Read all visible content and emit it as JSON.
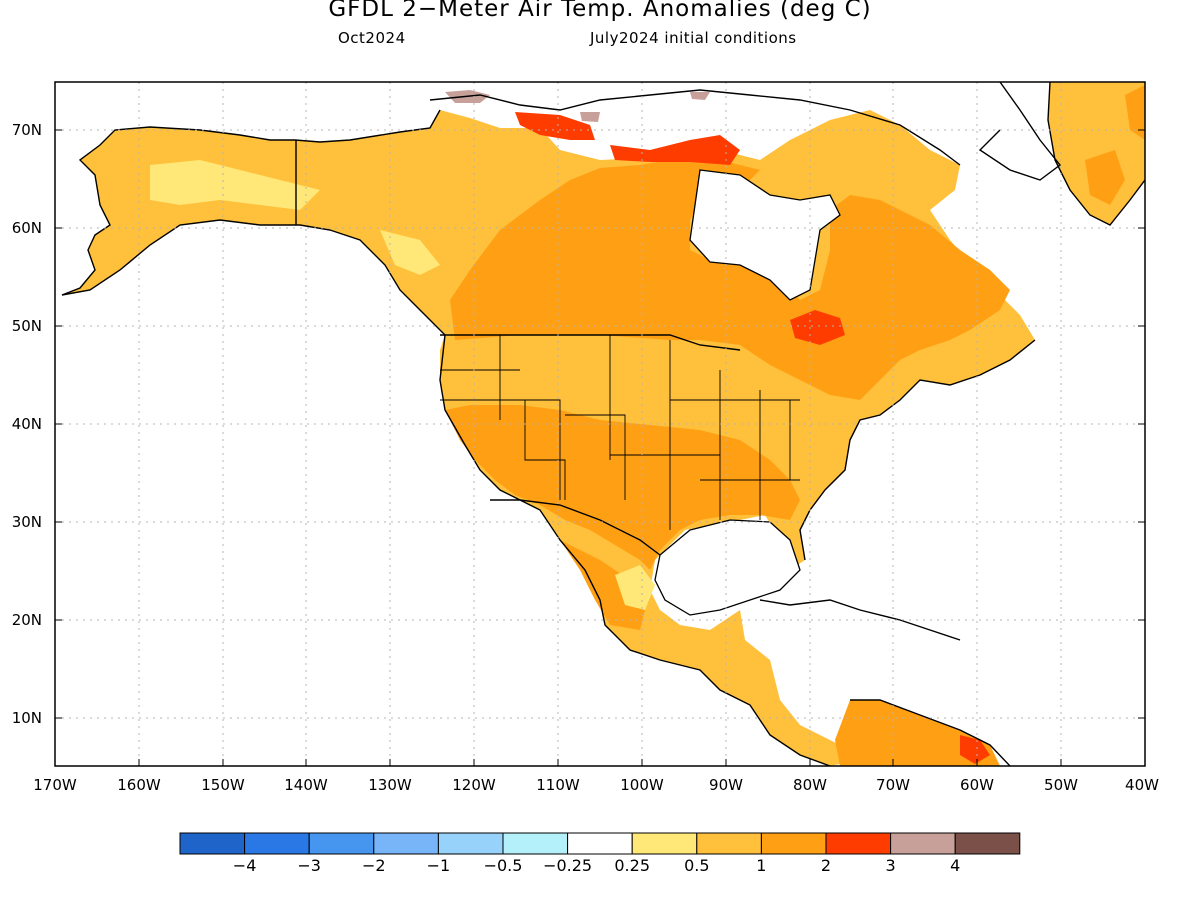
{
  "title": "GFDL 2−Meter Air Temp. Anomalies (deg C)",
  "subtitle_left": "Oct2024",
  "subtitle_right": "July2024 initial conditions",
  "lat_labels": [
    "70N",
    "60N",
    "50N",
    "40N",
    "30N",
    "20N",
    "10N"
  ],
  "lon_labels": [
    "170W",
    "160W",
    "150W",
    "140W",
    "130W",
    "120W",
    "110W",
    "100W",
    "90W",
    "80W",
    "70W",
    "60W",
    "50W",
    "40W"
  ],
  "colorbar": {
    "colors": [
      "#1f64c8",
      "#2a78e6",
      "#4696f0",
      "#78b4f8",
      "#96d2fa",
      "#b4f0fa",
      "#ffffff",
      "#ffe878",
      "#ffc03c",
      "#ffa014",
      "#ff3c00",
      "#c8a09a",
      "#7a5048"
    ],
    "labels": [
      "−4",
      "−3",
      "−2",
      "−1",
      "−0.5",
      "−0.25",
      "0.25",
      "0.5",
      "1",
      "2",
      "3",
      "4"
    ]
  },
  "colors": {
    "land_anomaly_main": "#ffa014",
    "land_anomaly_light": "#ffc03c",
    "land_anomaly_pale": "#ffe878",
    "land_anomaly_hot": "#ff3c00",
    "land_anomaly_extreme": "#c8a09a",
    "coastline": "#000000",
    "grid": "#b4b4b4"
  }
}
